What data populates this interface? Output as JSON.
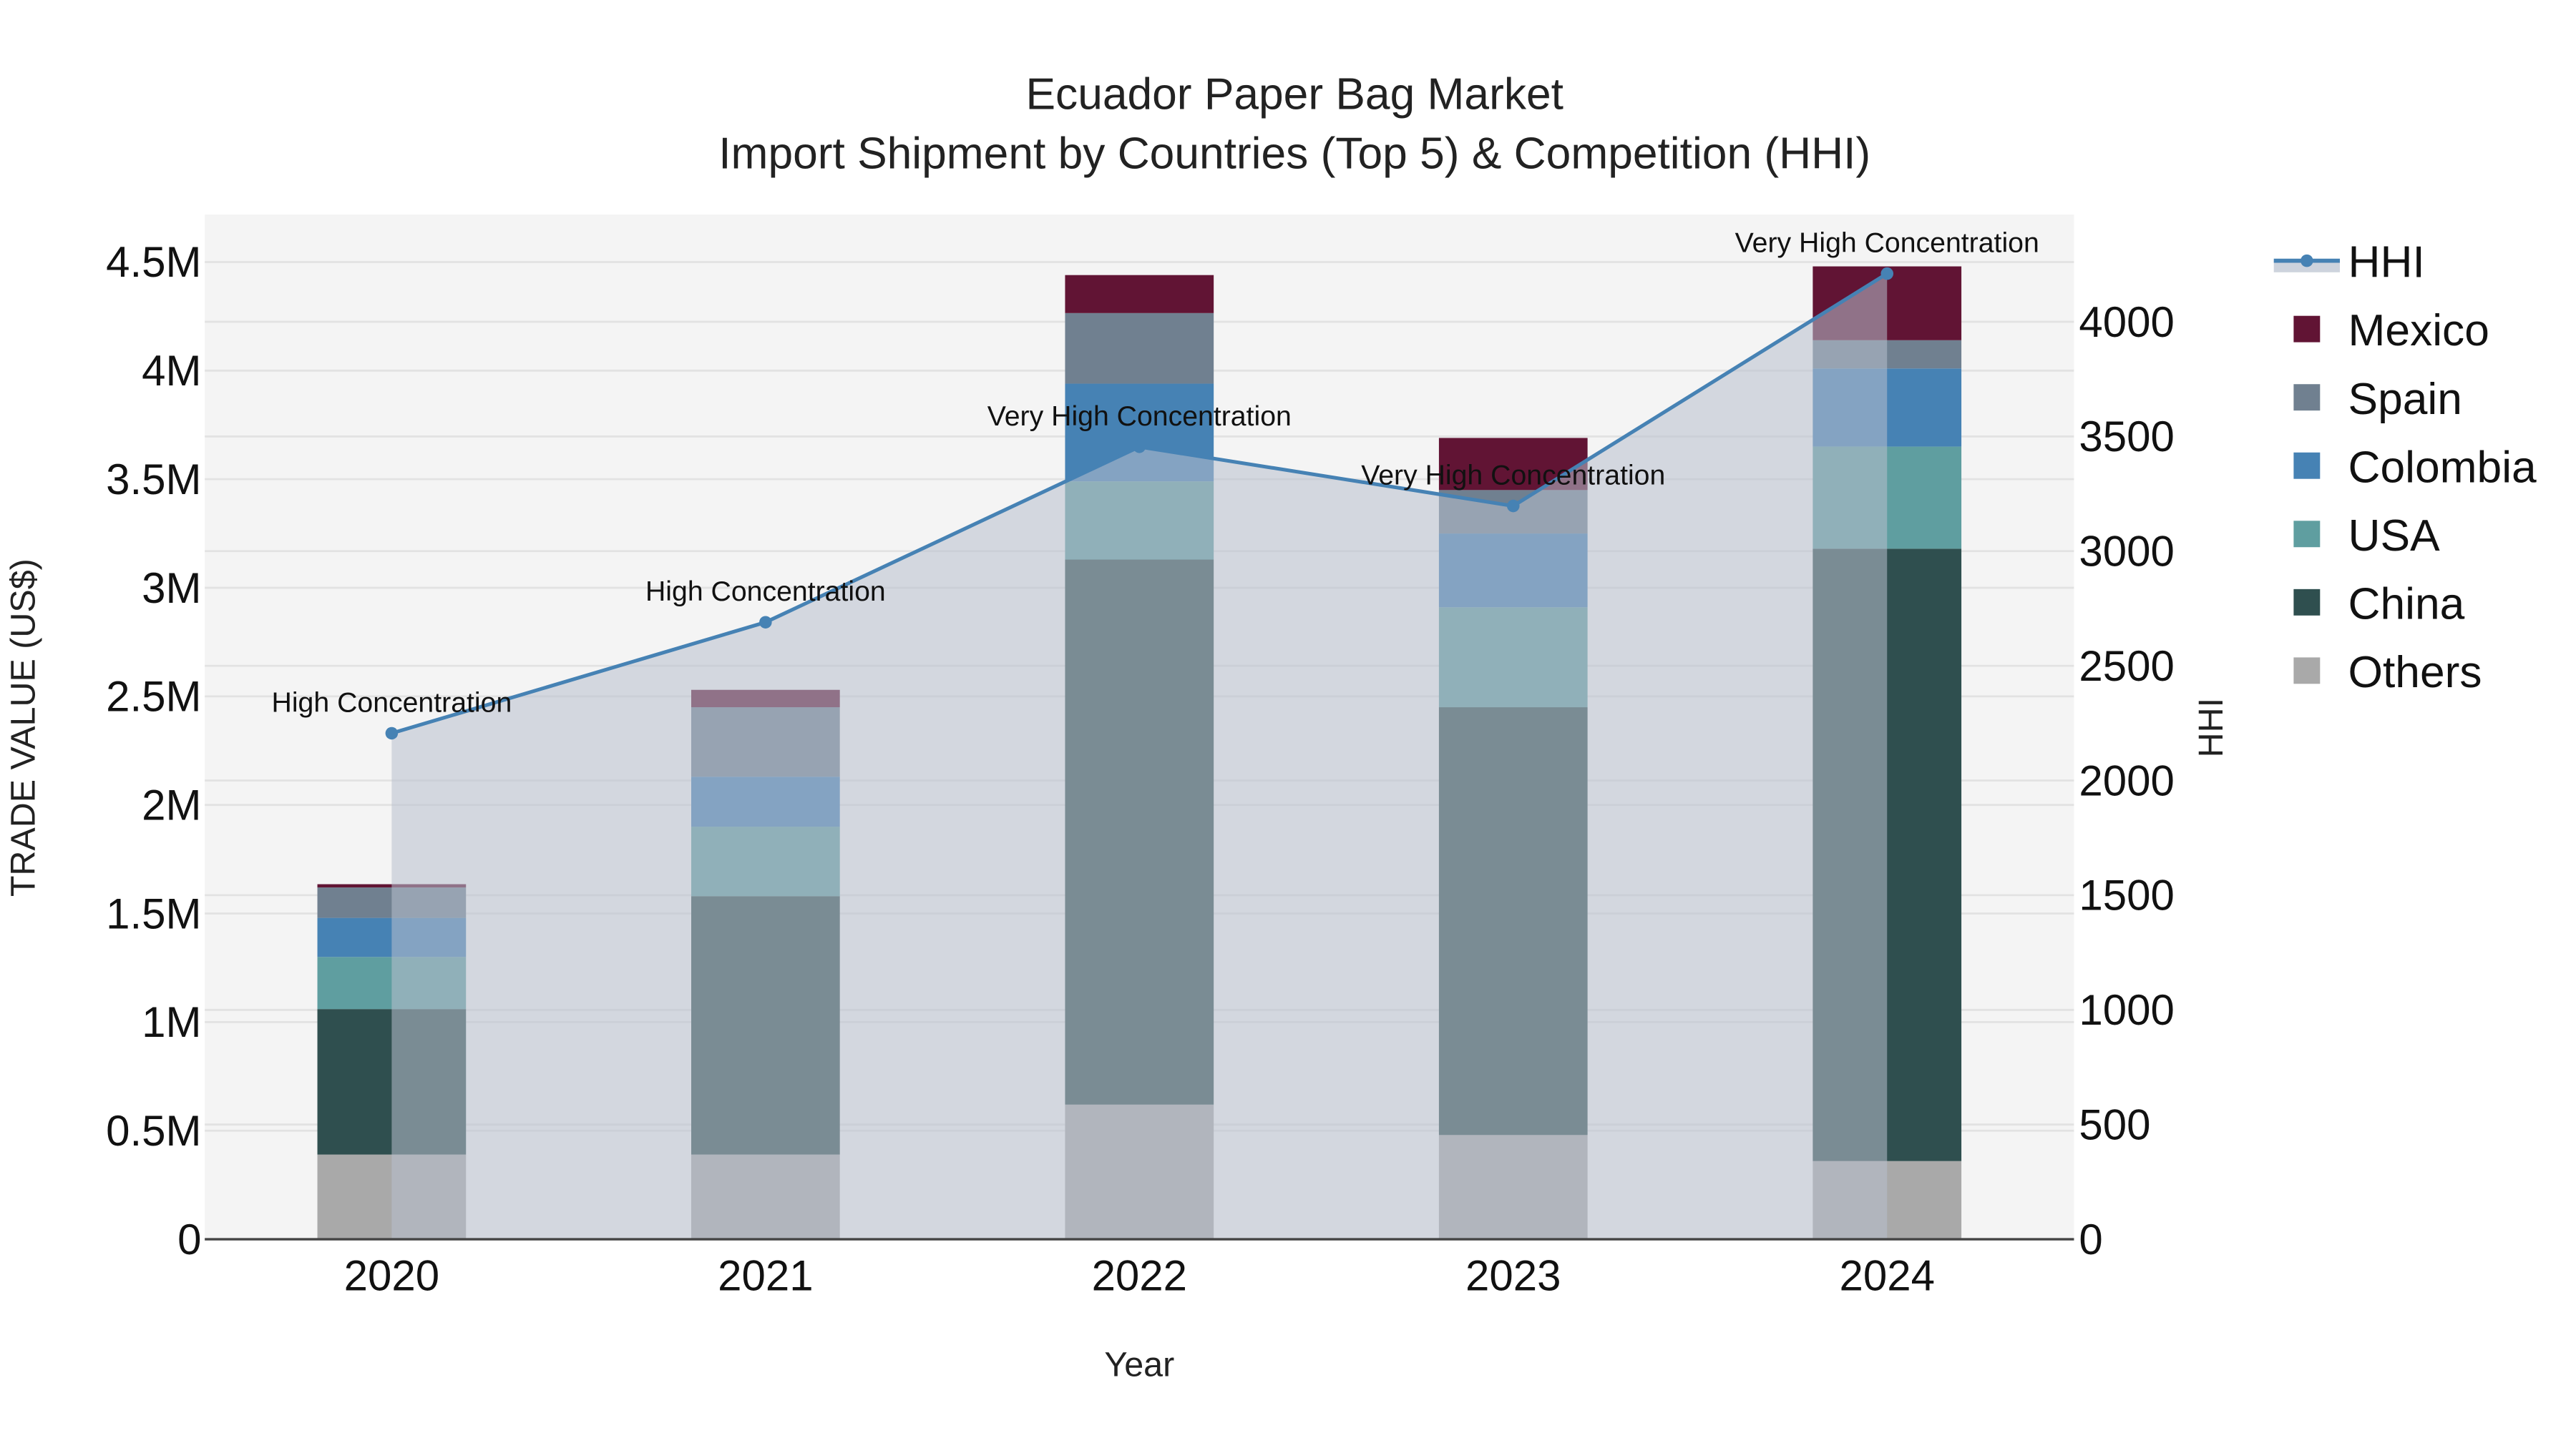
{
  "chart_data": {
    "type": "bar",
    "subtype": "stacked bar with secondary-axis line/area",
    "title": "Ecuador Paper Bag Market",
    "subtitle": "Import Shipment by Countries (Top 5) & Competition (HHI)",
    "xlabel": "Year",
    "ylabel": "TRADE VALUE (US$)",
    "y2label": "HHI",
    "categories": [
      "2020",
      "2021",
      "2022",
      "2023",
      "2024"
    ],
    "ylim": [
      0,
      4700000
    ],
    "y_ticks": [
      {
        "value": 0,
        "label": "0"
      },
      {
        "value": 500000,
        "label": "0.5M"
      },
      {
        "value": 1000000,
        "label": "1M"
      },
      {
        "value": 1500000,
        "label": "1.5M"
      },
      {
        "value": 2000000,
        "label": "2M"
      },
      {
        "value": 2500000,
        "label": "2.5M"
      },
      {
        "value": 3000000,
        "label": "3M"
      },
      {
        "value": 3500000,
        "label": "3.5M"
      },
      {
        "value": 4000000,
        "label": "4M"
      },
      {
        "value": 4500000,
        "label": "4.5M"
      }
    ],
    "y2lim": [
      0,
      4470
    ],
    "y2_ticks": [
      {
        "value": 0,
        "label": "0"
      },
      {
        "value": 500,
        "label": "500"
      },
      {
        "value": 1000,
        "label": "1000"
      },
      {
        "value": 1500,
        "label": "1500"
      },
      {
        "value": 2000,
        "label": "2000"
      },
      {
        "value": 2500,
        "label": "2500"
      },
      {
        "value": 3000,
        "label": "3000"
      },
      {
        "value": 3500,
        "label": "3500"
      },
      {
        "value": 4000,
        "label": "4000"
      }
    ],
    "series": [
      {
        "name": "Others",
        "color": "#A9A9A9",
        "values": [
          390000,
          390000,
          620000,
          480000,
          360000
        ]
      },
      {
        "name": "China",
        "color": "#2F4F4F",
        "values": [
          670000,
          1190000,
          2510000,
          1970000,
          2820000
        ]
      },
      {
        "name": "USA",
        "color": "#5F9EA0",
        "values": [
          240000,
          320000,
          360000,
          460000,
          470000
        ]
      },
      {
        "name": "Colombia",
        "color": "#4682B4",
        "values": [
          180000,
          230000,
          450000,
          340000,
          360000
        ]
      },
      {
        "name": "Spain",
        "color": "#708090",
        "values": [
          140000,
          320000,
          325000,
          200000,
          130000
        ]
      },
      {
        "name": "Mexico",
        "color": "#611434",
        "values": [
          15000,
          80000,
          175000,
          240000,
          340000
        ]
      }
    ],
    "line_series": {
      "name": "HHI",
      "axis": "y2",
      "color": "#4682B4",
      "fill_color": "#B8C0CE",
      "values": [
        2206,
        2690,
        3455,
        3197,
        4210
      ],
      "annotations": [
        "High Concentration",
        "High Concentration",
        "Very High Concentration",
        "Very High Concentration",
        "Very High Concentration"
      ]
    },
    "legend": {
      "position": "right",
      "items": [
        "HHI",
        "Mexico",
        "Spain",
        "Colombia",
        "USA",
        "China",
        "Others"
      ]
    },
    "grid": true,
    "plot_bgcolor": "#F4F4F4"
  }
}
